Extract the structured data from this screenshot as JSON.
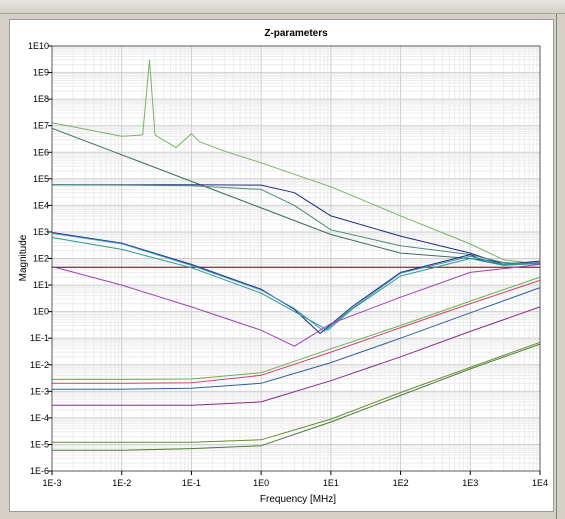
{
  "chart_data": {
    "type": "line",
    "title": "Z-parameters",
    "xlabel": "Frequency [MHz]",
    "ylabel": "Magnitude",
    "xscale": "log",
    "yscale": "log",
    "xlim": [
      0.001,
      10000
    ],
    "ylim": [
      1e-06,
      10000000000
    ],
    "grid": true,
    "x_ticks": [
      {
        "value": 0.001,
        "label": "1E-3"
      },
      {
        "value": 0.01,
        "label": "1E-2"
      },
      {
        "value": 0.1,
        "label": "1E-1"
      },
      {
        "value": 1,
        "label": "1E0"
      },
      {
        "value": 10,
        "label": "1E1"
      },
      {
        "value": 100,
        "label": "1E2"
      },
      {
        "value": 1000,
        "label": "1E3"
      },
      {
        "value": 10000,
        "label": "1E4"
      }
    ],
    "y_ticks": [
      {
        "value": 10000000000,
        "label": "1E10"
      },
      {
        "value": 1000000000,
        "label": "1E9"
      },
      {
        "value": 100000000,
        "label": "1E8"
      },
      {
        "value": 10000000,
        "label": "1E7"
      },
      {
        "value": 1000000,
        "label": "1E6"
      },
      {
        "value": 100000,
        "label": "1E5"
      },
      {
        "value": 10000,
        "label": "1E4"
      },
      {
        "value": 1000,
        "label": "1E3"
      },
      {
        "value": 100,
        "label": "1E2"
      },
      {
        "value": 10,
        "label": "1E1"
      },
      {
        "value": 1,
        "label": "1E0"
      },
      {
        "value": 0.1,
        "label": "1E-1"
      },
      {
        "value": 0.01,
        "label": "1E-2"
      },
      {
        "value": 0.001,
        "label": "1E-3"
      },
      {
        "value": 0.0001,
        "label": "1E-4"
      },
      {
        "value": 1e-05,
        "label": "1E-5"
      },
      {
        "value": 1e-06,
        "label": "1E-6"
      }
    ],
    "series": [
      {
        "color": "#7bb06a",
        "x": [
          0.001,
          0.01,
          0.02,
          0.025,
          0.03,
          0.06,
          0.1,
          0.13,
          0.3,
          1,
          10,
          100,
          1000,
          3000,
          10000
        ],
        "y": [
          13000000,
          4000000,
          4500000,
          3000000000,
          4500000,
          1500000,
          5000000,
          2500000,
          1100000,
          400000,
          50000,
          4000,
          350,
          90,
          60
        ]
      },
      {
        "color": "#3a6e58",
        "x": [
          0.001,
          0.01,
          0.1,
          1,
          10,
          100,
          1000,
          3000,
          10000
        ],
        "y": [
          8000000,
          800000,
          80000,
          8000,
          800,
          160,
          100,
          70,
          60
        ]
      },
      {
        "color": "#1e2e7a",
        "x": [
          0.001,
          0.01,
          0.1,
          1,
          3,
          10,
          100,
          1000,
          3000,
          10000
        ],
        "y": [
          60000,
          60000,
          60000,
          58000,
          30000,
          4000,
          700,
          160,
          60,
          80
        ]
      },
      {
        "color": "#4a8a74",
        "x": [
          0.001,
          0.01,
          0.1,
          1,
          3,
          10,
          100,
          1000,
          3000,
          10000
        ],
        "y": [
          60000,
          58000,
          55000,
          40000,
          10000,
          1200,
          300,
          140,
          70,
          60
        ]
      },
      {
        "color": "#5c0a0a",
        "x": [
          0.001,
          0.01,
          0.1,
          1,
          10,
          100,
          1000,
          10000
        ],
        "y": [
          47,
          47,
          47,
          47,
          47,
          47,
          47,
          47
        ]
      },
      {
        "color": "#1e2e7a",
        "x": [
          0.001,
          0.01,
          0.1,
          1,
          3,
          7,
          20,
          100,
          1000,
          1500,
          3000,
          10000
        ],
        "y": [
          950,
          380,
          60,
          7,
          1.2,
          0.15,
          1.5,
          30,
          140,
          80,
          60,
          70
        ]
      },
      {
        "color": "#3a8fc0",
        "x": [
          0.001,
          0.01,
          0.1,
          1,
          3,
          8,
          20,
          100,
          1000,
          3000,
          10000
        ],
        "y": [
          900,
          360,
          55,
          6.5,
          1.3,
          0.18,
          1.3,
          28,
          120,
          60,
          70
        ]
      },
      {
        "color": "#2a9a8a",
        "x": [
          0.001,
          0.01,
          0.1,
          1,
          3,
          9,
          20,
          100,
          1000,
          3000,
          10000
        ],
        "y": [
          620,
          220,
          45,
          5,
          1.0,
          0.2,
          1.2,
          22,
          100,
          55,
          65
        ]
      },
      {
        "color": "#a040b8",
        "x": [
          0.001,
          0.01,
          0.1,
          1,
          3,
          10,
          100,
          1000,
          10000
        ],
        "y": [
          50,
          10,
          1.5,
          0.2,
          0.05,
          0.35,
          3.5,
          30,
          60
        ]
      },
      {
        "color": "#6ab04a",
        "x": [
          0.001,
          0.01,
          0.1,
          1,
          10,
          100,
          1000,
          10000
        ],
        "y": [
          0.0028,
          0.0028,
          0.0029,
          0.005,
          0.04,
          0.3,
          2.5,
          20
        ]
      },
      {
        "color": "#d04070",
        "x": [
          0.001,
          0.01,
          0.1,
          1,
          10,
          100,
          1000,
          10000
        ],
        "y": [
          0.002,
          0.002,
          0.0021,
          0.004,
          0.03,
          0.25,
          2,
          15
        ]
      },
      {
        "color": "#3060a0",
        "x": [
          0.001,
          0.01,
          0.1,
          1,
          10,
          100,
          1000,
          10000
        ],
        "y": [
          0.0012,
          0.0012,
          0.0013,
          0.002,
          0.012,
          0.1,
          0.9,
          8
        ]
      },
      {
        "color": "#8a2a8a",
        "x": [
          0.001,
          0.01,
          0.1,
          1,
          10,
          100,
          1000,
          10000
        ],
        "y": [
          0.0003,
          0.0003,
          0.0003,
          0.0004,
          0.0025,
          0.02,
          0.18,
          1.5
        ]
      },
      {
        "color": "#6a8a2a",
        "x": [
          0.001,
          0.01,
          0.1,
          1,
          10,
          100,
          1000,
          10000
        ],
        "y": [
          1.2e-05,
          1.2e-05,
          1.2e-05,
          1.5e-05,
          9e-05,
          0.0009,
          0.008,
          0.07
        ]
      },
      {
        "color": "#4a7a3a",
        "x": [
          0.001,
          0.01,
          0.1,
          1,
          10,
          100,
          1000,
          10000
        ],
        "y": [
          6e-06,
          6e-06,
          7e-06,
          9e-06,
          7e-05,
          0.0007,
          0.007,
          0.06
        ]
      }
    ]
  }
}
